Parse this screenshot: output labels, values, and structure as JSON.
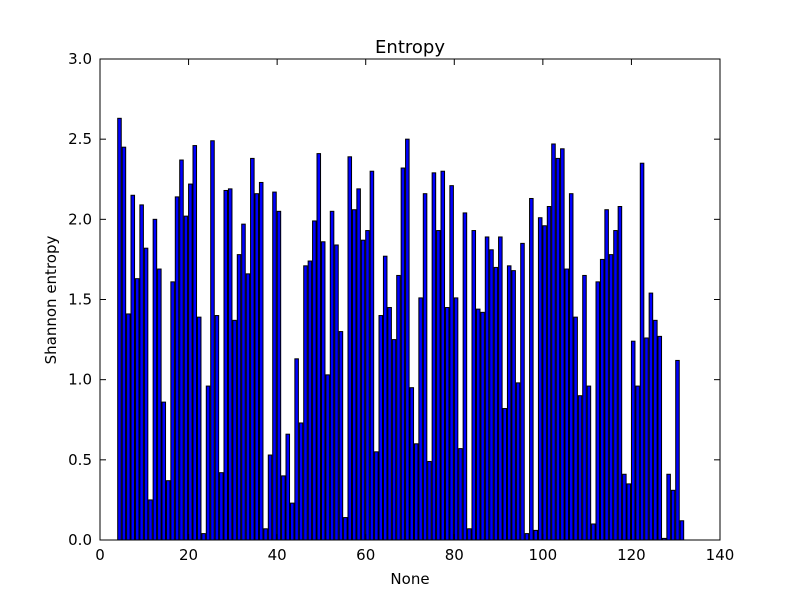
{
  "chart_data": {
    "type": "bar",
    "title": "Entropy",
    "xlabel": "None",
    "ylabel": "Shannon entropy",
    "xlim": [
      0,
      140
    ],
    "ylim": [
      0,
      3.0
    ],
    "xticks": [
      "0",
      "20",
      "40",
      "60",
      "80",
      "100",
      "120",
      "140"
    ],
    "yticks": [
      "0.0",
      "0.5",
      "1.0",
      "1.5",
      "2.0",
      "2.5",
      "3.0"
    ],
    "bar_color": "#0000ff",
    "edge_color": "#000000",
    "grid": false,
    "x": [
      4,
      5,
      6,
      7,
      8,
      9,
      10,
      11,
      12,
      13,
      14,
      15,
      16,
      17,
      18,
      19,
      20,
      21,
      22,
      23,
      24,
      25,
      26,
      27,
      28,
      29,
      30,
      31,
      32,
      33,
      34,
      35,
      36,
      37,
      38,
      39,
      40,
      41,
      42,
      43,
      44,
      45,
      46,
      47,
      48,
      49,
      50,
      51,
      52,
      53,
      54,
      55,
      56,
      57,
      58,
      59,
      60,
      61,
      62,
      63,
      64,
      65,
      66,
      67,
      68,
      69,
      70,
      71,
      72,
      73,
      74,
      75,
      76,
      77,
      78,
      79,
      80,
      81,
      82,
      83,
      84,
      85,
      86,
      87,
      88,
      89,
      90,
      91,
      92,
      93,
      94,
      95,
      96,
      97,
      98,
      99,
      100,
      101,
      102,
      103,
      104,
      105,
      106,
      107,
      108,
      109,
      110,
      111,
      112,
      113,
      114,
      115,
      116,
      117,
      118,
      119,
      120,
      121,
      122,
      123,
      124,
      125,
      126,
      127,
      128,
      129,
      130,
      131
    ],
    "values": [
      2.63,
      2.45,
      1.41,
      2.15,
      1.63,
      2.09,
      1.82,
      0.25,
      2.0,
      1.69,
      0.86,
      0.37,
      1.61,
      2.14,
      2.37,
      2.02,
      2.22,
      2.46,
      1.39,
      0.04,
      0.96,
      2.49,
      1.4,
      0.42,
      2.18,
      2.19,
      1.37,
      1.78,
      1.97,
      1.66,
      2.38,
      2.16,
      2.23,
      0.07,
      0.53,
      2.17,
      2.05,
      0.4,
      0.66,
      0.23,
      1.13,
      0.73,
      1.71,
      1.74,
      1.99,
      2.41,
      1.86,
      1.03,
      2.05,
      1.84,
      1.3,
      0.14,
      2.39,
      2.06,
      2.19,
      1.87,
      1.93,
      2.3,
      0.55,
      1.4,
      1.77,
      1.45,
      1.25,
      1.65,
      2.32,
      2.5,
      0.95,
      0.6,
      1.51,
      2.16,
      0.49,
      2.29,
      1.93,
      2.3,
      1.45,
      2.21,
      1.51,
      0.57,
      2.04,
      0.07,
      1.93,
      1.44,
      1.42,
      1.89,
      1.81,
      1.7,
      1.89,
      0.82,
      1.71,
      1.68,
      0.98,
      1.85,
      0.04,
      2.13,
      0.06,
      2.01,
      1.96,
      2.08,
      2.47,
      2.38,
      2.44,
      1.69,
      2.16,
      1.39,
      0.9,
      1.65,
      0.96,
      0.1,
      1.61,
      1.75,
      2.06,
      1.78,
      1.93,
      2.08,
      0.41,
      0.35,
      1.24,
      0.96,
      2.35,
      1.26,
      1.54,
      1.37,
      1.27,
      0.01,
      0.41,
      0.31,
      1.12,
      0.12
    ]
  }
}
